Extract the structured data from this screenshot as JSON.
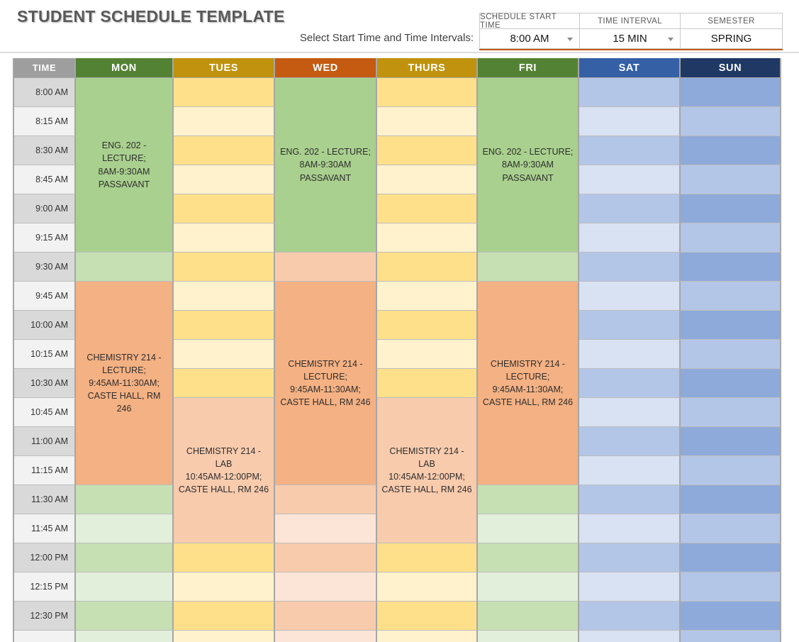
{
  "header": {
    "title": "STUDENT SCHEDULE TEMPLATE",
    "select_label": "Select Start Time and Time Intervals:"
  },
  "controls": {
    "accent_color": "#C55A11",
    "items": [
      {
        "label": "SCHEDULE START TIME",
        "value": "8:00 AM",
        "dropdown": true
      },
      {
        "label": "TIME INTERVAL",
        "value": "15 MIN",
        "dropdown": true
      },
      {
        "label": "SEMESTER",
        "value": "SPRING",
        "dropdown": false
      }
    ]
  },
  "schedule": {
    "headers": [
      {
        "label": "TIME",
        "bg": "#9E9E9E"
      },
      {
        "label": "MON",
        "bg": "#548235"
      },
      {
        "label": "TUES",
        "bg": "#C0920E"
      },
      {
        "label": "WED",
        "bg": "#C55A11"
      },
      {
        "label": "THURS",
        "bg": "#C0920E"
      },
      {
        "label": "FRI",
        "bg": "#548235"
      },
      {
        "label": "SAT",
        "bg": "#3560A6"
      },
      {
        "label": "SUN",
        "bg": "#1F3864"
      }
    ],
    "time_row_colors": [
      "#D9D9D9",
      "#F2F2F2"
    ],
    "times": [
      "8:00 AM",
      "8:15 AM",
      "8:30 AM",
      "8:45 AM",
      "9:00 AM",
      "9:15 AM",
      "9:30 AM",
      "9:45 AM",
      "10:00 AM",
      "10:15 AM",
      "10:30 AM",
      "10:45 AM",
      "11:00 AM",
      "11:15 AM",
      "11:30 AM",
      "11:45 AM",
      "12:00 PM",
      "12:15 PM",
      "12:30 PM",
      ""
    ],
    "day_columns": [
      {
        "day": "MON",
        "segments": [
          {
            "span": 6,
            "bg": "#A9D08E",
            "text": "ENG. 202 - LECTURE;\n8AM-9:30AM\nPASSAVANT"
          },
          {
            "span": 1,
            "bg": "#C6E0B4"
          },
          {
            "span": 7,
            "bg": "#F4B183",
            "text": "CHEMISTRY 214 -\nLECTURE;\n9:45AM-11:30AM;\nCASTE HALL, RM 246"
          },
          {
            "span": 1,
            "bg": "#C6E0B4"
          },
          {
            "span": 1,
            "bg": "#E2EFDA"
          },
          {
            "span": 1,
            "bg": "#C6E0B4"
          },
          {
            "span": 1,
            "bg": "#E2EFDA"
          },
          {
            "span": 1,
            "bg": "#C6E0B4"
          },
          {
            "span": 1,
            "bg": "#E2EFDA"
          }
        ]
      },
      {
        "day": "TUES",
        "segments": [
          {
            "span": 1,
            "bg": "#FFE08A"
          },
          {
            "span": 1,
            "bg": "#FFF2CC"
          },
          {
            "span": 1,
            "bg": "#FFE08A"
          },
          {
            "span": 1,
            "bg": "#FFF2CC"
          },
          {
            "span": 1,
            "bg": "#FFE08A"
          },
          {
            "span": 1,
            "bg": "#FFF2CC"
          },
          {
            "span": 1,
            "bg": "#FFE08A"
          },
          {
            "span": 1,
            "bg": "#FFF2CC"
          },
          {
            "span": 1,
            "bg": "#FFE08A"
          },
          {
            "span": 1,
            "bg": "#FFF2CC"
          },
          {
            "span": 1,
            "bg": "#FFE08A"
          },
          {
            "span": 5,
            "bg": "#F8CBAD",
            "text": "CHEMISTRY 214 - LAB\n10:45AM-12:00PM;\nCASTE HALL, RM 246"
          },
          {
            "span": 1,
            "bg": "#FFE08A"
          },
          {
            "span": 1,
            "bg": "#FFF2CC"
          },
          {
            "span": 1,
            "bg": "#FFE08A"
          },
          {
            "span": 1,
            "bg": "#FFF2CC"
          }
        ]
      },
      {
        "day": "WED",
        "segments": [
          {
            "span": 6,
            "bg": "#A9D08E",
            "text": "ENG. 202 - LECTURE;\n8AM-9:30AM\nPASSAVANT"
          },
          {
            "span": 1,
            "bg": "#F8CBAD"
          },
          {
            "span": 7,
            "bg": "#F4B183",
            "text": "CHEMISTRY 214 -\nLECTURE;\n9:45AM-11:30AM;\nCASTE HALL, RM 246"
          },
          {
            "span": 1,
            "bg": "#F8CBAD"
          },
          {
            "span": 1,
            "bg": "#FCE4D6"
          },
          {
            "span": 1,
            "bg": "#F8CBAD"
          },
          {
            "span": 1,
            "bg": "#FCE4D6"
          },
          {
            "span": 1,
            "bg": "#F8CBAD"
          },
          {
            "span": 1,
            "bg": "#FCE4D6"
          }
        ]
      },
      {
        "day": "THURS",
        "segments": [
          {
            "span": 1,
            "bg": "#FFE08A"
          },
          {
            "span": 1,
            "bg": "#FFF2CC"
          },
          {
            "span": 1,
            "bg": "#FFE08A"
          },
          {
            "span": 1,
            "bg": "#FFF2CC"
          },
          {
            "span": 1,
            "bg": "#FFE08A"
          },
          {
            "span": 1,
            "bg": "#FFF2CC"
          },
          {
            "span": 1,
            "bg": "#FFE08A"
          },
          {
            "span": 1,
            "bg": "#FFF2CC"
          },
          {
            "span": 1,
            "bg": "#FFE08A"
          },
          {
            "span": 1,
            "bg": "#FFF2CC"
          },
          {
            "span": 1,
            "bg": "#FFE08A"
          },
          {
            "span": 5,
            "bg": "#F8CBAD",
            "text": "CHEMISTRY 214 - LAB\n10:45AM-12:00PM;\nCASTE HALL, RM 246"
          },
          {
            "span": 1,
            "bg": "#FFE08A"
          },
          {
            "span": 1,
            "bg": "#FFF2CC"
          },
          {
            "span": 1,
            "bg": "#FFE08A"
          },
          {
            "span": 1,
            "bg": "#FFF2CC"
          }
        ]
      },
      {
        "day": "FRI",
        "segments": [
          {
            "span": 6,
            "bg": "#A9D08E",
            "text": "ENG. 202 - LECTURE;\n8AM-9:30AM\nPASSAVANT"
          },
          {
            "span": 1,
            "bg": "#C6E0B4"
          },
          {
            "span": 7,
            "bg": "#F4B183",
            "text": "CHEMISTRY 214 -\nLECTURE;\n9:45AM-11:30AM;\nCASTE HALL, RM 246"
          },
          {
            "span": 1,
            "bg": "#C6E0B4"
          },
          {
            "span": 1,
            "bg": "#E2EFDA"
          },
          {
            "span": 1,
            "bg": "#C6E0B4"
          },
          {
            "span": 1,
            "bg": "#E2EFDA"
          },
          {
            "span": 1,
            "bg": "#C6E0B4"
          },
          {
            "span": 1,
            "bg": "#E2EFDA"
          }
        ]
      },
      {
        "day": "SAT",
        "segments": [
          {
            "span": 1,
            "bg": "#B4C6E7"
          },
          {
            "span": 1,
            "bg": "#D9E2F3"
          },
          {
            "span": 1,
            "bg": "#B4C6E7"
          },
          {
            "span": 1,
            "bg": "#D9E2F3"
          },
          {
            "span": 1,
            "bg": "#B4C6E7"
          },
          {
            "span": 1,
            "bg": "#D9E2F3"
          },
          {
            "span": 1,
            "bg": "#B4C6E7"
          },
          {
            "span": 1,
            "bg": "#D9E2F3"
          },
          {
            "span": 1,
            "bg": "#B4C6E7"
          },
          {
            "span": 1,
            "bg": "#D9E2F3"
          },
          {
            "span": 1,
            "bg": "#B4C6E7"
          },
          {
            "span": 1,
            "bg": "#D9E2F3"
          },
          {
            "span": 1,
            "bg": "#B4C6E7"
          },
          {
            "span": 1,
            "bg": "#D9E2F3"
          },
          {
            "span": 1,
            "bg": "#B4C6E7"
          },
          {
            "span": 1,
            "bg": "#D9E2F3"
          },
          {
            "span": 1,
            "bg": "#B4C6E7"
          },
          {
            "span": 1,
            "bg": "#D9E2F3"
          },
          {
            "span": 1,
            "bg": "#B4C6E7"
          },
          {
            "span": 1,
            "bg": "#D9E2F3"
          }
        ]
      },
      {
        "day": "SUN",
        "segments": [
          {
            "span": 1,
            "bg": "#8EAADB"
          },
          {
            "span": 1,
            "bg": "#B4C6E7"
          },
          {
            "span": 1,
            "bg": "#8EAADB"
          },
          {
            "span": 1,
            "bg": "#B4C6E7"
          },
          {
            "span": 1,
            "bg": "#8EAADB"
          },
          {
            "span": 1,
            "bg": "#B4C6E7"
          },
          {
            "span": 1,
            "bg": "#8EAADB"
          },
          {
            "span": 1,
            "bg": "#B4C6E7"
          },
          {
            "span": 1,
            "bg": "#8EAADB"
          },
          {
            "span": 1,
            "bg": "#B4C6E7"
          },
          {
            "span": 1,
            "bg": "#8EAADB"
          },
          {
            "span": 1,
            "bg": "#B4C6E7"
          },
          {
            "span": 1,
            "bg": "#8EAADB"
          },
          {
            "span": 1,
            "bg": "#B4C6E7"
          },
          {
            "span": 1,
            "bg": "#8EAADB"
          },
          {
            "span": 1,
            "bg": "#B4C6E7"
          },
          {
            "span": 1,
            "bg": "#8EAADB"
          },
          {
            "span": 1,
            "bg": "#B4C6E7"
          },
          {
            "span": 1,
            "bg": "#8EAADB"
          },
          {
            "span": 1,
            "bg": "#B4C6E7"
          }
        ]
      }
    ]
  }
}
